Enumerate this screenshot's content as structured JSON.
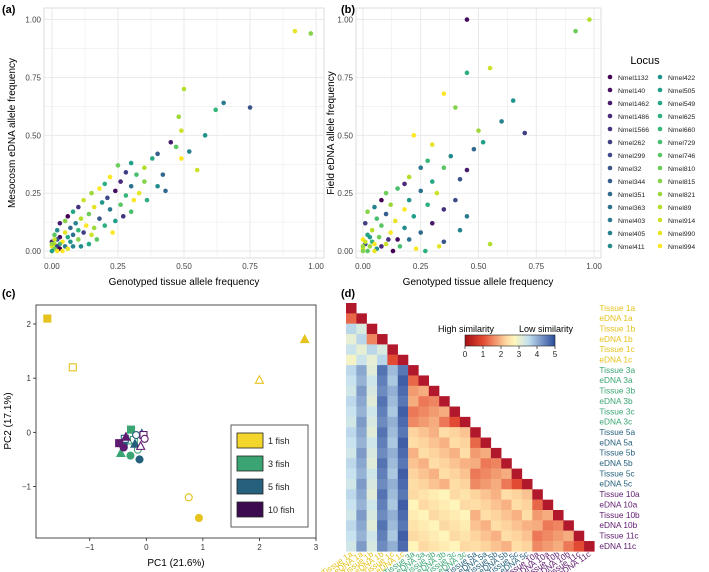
{
  "panels": {
    "a": {
      "label": "(a)"
    },
    "b": {
      "label": "(b)"
    },
    "c": {
      "label": "(c)"
    },
    "d": {
      "label": "(d)"
    }
  },
  "chart_data": [
    {
      "id": "a",
      "type": "scatter",
      "xlabel": "Genotyped tissue allele frequency",
      "ylabel": "Mesocosm eDNA allele frequency",
      "xlim": [
        -0.03,
        1.03
      ],
      "ylim": [
        -0.03,
        1.05
      ],
      "xticks": [
        "0.00",
        "0.25",
        "0.50",
        "0.75",
        "1.00"
      ],
      "yticks": [
        "0.00",
        "0.25",
        "0.50",
        "0.75",
        "1.00"
      ],
      "grid": true,
      "points": [
        [
          0.92,
          0.95,
          26
        ],
        [
          0.98,
          0.94,
          22
        ],
        [
          0.5,
          0.7,
          24
        ],
        [
          0.65,
          0.64,
          11
        ],
        [
          0.75,
          0.62,
          7
        ],
        [
          0.62,
          0.61,
          18
        ],
        [
          0.48,
          0.58,
          23
        ],
        [
          0.49,
          0.52,
          25
        ],
        [
          0.58,
          0.5,
          14
        ],
        [
          0.45,
          0.47,
          2
        ],
        [
          0.47,
          0.45,
          20
        ],
        [
          0.52,
          0.43,
          12
        ],
        [
          0.4,
          0.42,
          8
        ],
        [
          0.49,
          0.4,
          27
        ],
        [
          0.38,
          0.4,
          16
        ],
        [
          0.3,
          0.38,
          15
        ],
        [
          0.25,
          0.37,
          21
        ],
        [
          0.35,
          0.36,
          24
        ],
        [
          0.28,
          0.34,
          5
        ],
        [
          0.32,
          0.33,
          19
        ],
        [
          0.42,
          0.33,
          9
        ],
        [
          0.22,
          0.32,
          28
        ],
        [
          0.26,
          0.3,
          3
        ],
        [
          0.35,
          0.3,
          22
        ],
        [
          0.2,
          0.29,
          17
        ],
        [
          0.3,
          0.28,
          10
        ],
        [
          0.18,
          0.27,
          27
        ],
        [
          0.4,
          0.28,
          13
        ],
        [
          0.24,
          0.26,
          1
        ],
        [
          0.15,
          0.25,
          23
        ],
        [
          0.28,
          0.24,
          18
        ],
        [
          0.21,
          0.23,
          6
        ],
        [
          0.12,
          0.22,
          25
        ],
        [
          0.19,
          0.21,
          14
        ],
        [
          0.26,
          0.2,
          20
        ],
        [
          0.1,
          0.19,
          4
        ],
        [
          0.16,
          0.19,
          26
        ],
        [
          0.22,
          0.18,
          11
        ],
        [
          0.08,
          0.17,
          16
        ],
        [
          0.14,
          0.16,
          21
        ],
        [
          0.3,
          0.17,
          19
        ],
        [
          0.06,
          0.15,
          0
        ],
        [
          0.11,
          0.14,
          24
        ],
        [
          0.18,
          0.14,
          7
        ],
        [
          0.24,
          0.13,
          15
        ],
        [
          0.05,
          0.13,
          22
        ],
        [
          0.09,
          0.12,
          12
        ],
        [
          0.03,
          0.12,
          2
        ],
        [
          0.13,
          0.11,
          27
        ],
        [
          0.2,
          0.11,
          17
        ],
        [
          0.07,
          0.1,
          9
        ],
        [
          0.16,
          0.1,
          23
        ],
        [
          0.02,
          0.09,
          13
        ],
        [
          0.1,
          0.09,
          18
        ],
        [
          0.05,
          0.08,
          26
        ],
        [
          0.12,
          0.08,
          5
        ],
        [
          0.01,
          0.07,
          20
        ],
        [
          0.08,
          0.07,
          10
        ],
        [
          0.15,
          0.07,
          25
        ],
        [
          0.03,
          0.06,
          1
        ],
        [
          0.06,
          0.06,
          16
        ],
        [
          0.1,
          0.05,
          22
        ],
        [
          0.02,
          0.05,
          8
        ],
        [
          0.04,
          0.04,
          27
        ],
        [
          0.07,
          0.04,
          14
        ],
        [
          0.0,
          0.04,
          3
        ],
        [
          0.01,
          0.03,
          24
        ],
        [
          0.03,
          0.03,
          19
        ],
        [
          0.05,
          0.02,
          11
        ],
        [
          0.0,
          0.02,
          28
        ],
        [
          0.02,
          0.02,
          6
        ],
        [
          0.01,
          0.01,
          21
        ],
        [
          0.0,
          0.0,
          15
        ],
        [
          0.03,
          0.01,
          0
        ],
        [
          0.06,
          0.01,
          26
        ],
        [
          0.0,
          0.03,
          23
        ],
        [
          0.02,
          0.0,
          27
        ],
        [
          0.04,
          0.0,
          28
        ],
        [
          0.01,
          0.05,
          25
        ],
        [
          0.08,
          0.02,
          12
        ],
        [
          0.36,
          0.22,
          17
        ],
        [
          0.43,
          0.26,
          9
        ],
        [
          0.33,
          0.25,
          26
        ],
        [
          0.27,
          0.15,
          4
        ],
        [
          0.17,
          0.05,
          20
        ],
        [
          0.55,
          0.35,
          25
        ],
        [
          0.31,
          0.22,
          27
        ],
        [
          0.14,
          0.03,
          16
        ],
        [
          0.23,
          0.08,
          28
        ],
        [
          0.11,
          0.02,
          13
        ]
      ]
    },
    {
      "id": "b",
      "type": "scatter",
      "xlabel": "Genotyped tissue allele frequency",
      "ylabel": "Field eDNA allele frequency",
      "xlim": [
        -0.03,
        1.03
      ],
      "ylim": [
        -0.03,
        1.05
      ],
      "xticks": [
        "0.00",
        "0.25",
        "0.50",
        "0.75",
        "1.00"
      ],
      "yticks": [
        "0.00",
        "0.25",
        "0.50",
        "0.75",
        "1.00"
      ],
      "grid": true,
      "points": [
        [
          0.45,
          1.0,
          1
        ],
        [
          0.98,
          1.0,
          24
        ],
        [
          0.92,
          0.95,
          21
        ],
        [
          0.55,
          0.79,
          25
        ],
        [
          0.45,
          0.77,
          17
        ],
        [
          0.65,
          0.65,
          14
        ],
        [
          0.35,
          0.68,
          27
        ],
        [
          0.4,
          0.62,
          22
        ],
        [
          0.6,
          0.56,
          12
        ],
        [
          0.7,
          0.51,
          5
        ],
        [
          0.5,
          0.52,
          23
        ],
        [
          0.52,
          0.47,
          15
        ],
        [
          0.22,
          0.5,
          28
        ],
        [
          0.3,
          0.46,
          26
        ],
        [
          0.48,
          0.44,
          9
        ],
        [
          0.38,
          0.41,
          13
        ],
        [
          0.28,
          0.39,
          18
        ],
        [
          0.45,
          0.35,
          2
        ],
        [
          0.35,
          0.36,
          20
        ],
        [
          0.25,
          0.36,
          11
        ],
        [
          0.2,
          0.32,
          24
        ],
        [
          0.42,
          0.31,
          7
        ],
        [
          0.3,
          0.3,
          16
        ],
        [
          0.18,
          0.29,
          3
        ],
        [
          0.15,
          0.27,
          19
        ],
        [
          0.25,
          0.26,
          10
        ],
        [
          0.1,
          0.25,
          21
        ],
        [
          0.32,
          0.25,
          25
        ],
        [
          0.4,
          0.22,
          6
        ],
        [
          0.2,
          0.22,
          14
        ],
        [
          0.08,
          0.22,
          0
        ],
        [
          0.12,
          0.2,
          23
        ],
        [
          0.28,
          0.2,
          17
        ],
        [
          0.05,
          0.19,
          12
        ],
        [
          0.18,
          0.18,
          27
        ],
        [
          0.35,
          0.18,
          4
        ],
        [
          0.02,
          0.17,
          22
        ],
        [
          0.1,
          0.16,
          8
        ],
        [
          0.22,
          0.15,
          15
        ],
        [
          0.45,
          0.15,
          11
        ],
        [
          0.06,
          0.14,
          19
        ],
        [
          0.14,
          0.13,
          26
        ],
        [
          0.3,
          0.12,
          2
        ],
        [
          0.01,
          0.12,
          5
        ],
        [
          0.08,
          0.11,
          20
        ],
        [
          0.18,
          0.1,
          13
        ],
        [
          0.04,
          0.09,
          24
        ],
        [
          0.12,
          0.08,
          28
        ],
        [
          0.25,
          0.08,
          9
        ],
        [
          0.02,
          0.07,
          16
        ],
        [
          0.07,
          0.06,
          21
        ],
        [
          0.15,
          0.05,
          1
        ],
        [
          0.0,
          0.05,
          27
        ],
        [
          0.04,
          0.04,
          18
        ],
        [
          0.1,
          0.03,
          25
        ],
        [
          0.01,
          0.03,
          6
        ],
        [
          0.03,
          0.02,
          23
        ],
        [
          0.06,
          0.01,
          14
        ],
        [
          0.0,
          0.01,
          28
        ],
        [
          0.02,
          0.0,
          20
        ],
        [
          0.05,
          0.0,
          26
        ],
        [
          0.0,
          0.0,
          22
        ],
        [
          0.08,
          0.02,
          3
        ],
        [
          0.2,
          0.05,
          10
        ],
        [
          0.35,
          0.04,
          7
        ],
        [
          0.55,
          0.03,
          24
        ],
        [
          0.27,
          0.0,
          17
        ],
        [
          0.42,
          0.09,
          12
        ],
        [
          0.13,
          0.0,
          0
        ],
        [
          0.01,
          0.04,
          25
        ],
        [
          0.03,
          0.06,
          15
        ],
        [
          0.16,
          0.02,
          19
        ],
        [
          0.23,
          0.01,
          28
        ],
        [
          0.05,
          0.03,
          27
        ],
        [
          0.0,
          0.02,
          23
        ],
        [
          0.11,
          0.05,
          4
        ],
        [
          0.33,
          0.02,
          26
        ]
      ]
    },
    {
      "id": "c",
      "type": "scatter",
      "xlabel": "PC1 (21.6%)",
      "ylabel": "PC2 (17.1%)",
      "xlim": [
        -1.95,
        3.0
      ],
      "ylim": [
        -1.95,
        2.35
      ],
      "xticks": [
        "−1",
        "0",
        "1",
        "2",
        "3"
      ],
      "yticks": [
        "−1",
        "0",
        "1",
        "2"
      ],
      "grid": false,
      "legend": [
        {
          "label": "1 fish",
          "color": "#f2d62c"
        },
        {
          "label": "3 fish",
          "color": "#3aa572"
        },
        {
          "label": "5 fish",
          "color": "#25607c"
        },
        {
          "label": "10 fish",
          "color": "#3d0b4f"
        }
      ],
      "points": [
        [
          -1.75,
          2.1,
          0,
          "square",
          "filled"
        ],
        [
          -1.3,
          1.2,
          0,
          "square",
          "open"
        ],
        [
          2.8,
          1.72,
          0,
          "triangle",
          "filled"
        ],
        [
          2.0,
          0.97,
          0,
          "triangle",
          "open"
        ],
        [
          0.75,
          -1.2,
          0,
          "circle",
          "open"
        ],
        [
          0.93,
          -1.58,
          0,
          "circle",
          "filled"
        ],
        [
          -0.27,
          0.05,
          1,
          "square",
          "filled"
        ],
        [
          -0.22,
          -0.14,
          1,
          "square",
          "open"
        ],
        [
          -0.45,
          -0.38,
          1,
          "triangle",
          "filled"
        ],
        [
          -0.32,
          -0.15,
          1,
          "triangle",
          "open"
        ],
        [
          -0.15,
          -0.32,
          1,
          "circle",
          "open"
        ],
        [
          -0.28,
          -0.43,
          1,
          "circle",
          "filled"
        ],
        [
          -0.4,
          -0.22,
          2,
          "square",
          "filled"
        ],
        [
          -0.38,
          -0.12,
          2,
          "square",
          "open"
        ],
        [
          -0.2,
          -0.21,
          2,
          "triangle",
          "filled"
        ],
        [
          -0.08,
          -0.02,
          2,
          "triangle",
          "open"
        ],
        [
          -0.18,
          -0.05,
          2,
          "circle",
          "open"
        ],
        [
          -0.12,
          -0.5,
          2,
          "circle",
          "filled"
        ],
        [
          -0.48,
          -0.2,
          3,
          "square",
          "filled"
        ],
        [
          -0.05,
          -0.05,
          3,
          "square",
          "open"
        ],
        [
          -0.36,
          -0.08,
          3,
          "triangle",
          "filled"
        ],
        [
          -0.1,
          -0.25,
          3,
          "triangle",
          "open"
        ],
        [
          -0.03,
          -0.12,
          3,
          "circle",
          "open"
        ],
        [
          -0.4,
          -0.28,
          3,
          "circle",
          "filled"
        ]
      ]
    },
    {
      "id": "d",
      "type": "heatmap",
      "labels": [
        "Tissue 1a",
        "eDNA 1a",
        "Tissue 1b",
        "eDNA 1b",
        "Tissue 1c",
        "eDNA 1c",
        "Tissue 3a",
        "eDNA 3a",
        "Tissue 3b",
        "eDNA 3b",
        "Tissue 3c",
        "eDNA 3c",
        "Tissue 5a",
        "eDNA 5a",
        "Tissue 5b",
        "eDNA 5b",
        "Tissue 5c",
        "eDNA 5c",
        "Tissue 10a",
        "eDNA 10a",
        "Tissue 10b",
        "eDNA 10b",
        "Tissue 11c",
        "eDNA 11c"
      ],
      "label_groups": [
        0,
        0,
        0,
        0,
        0,
        0,
        1,
        1,
        1,
        1,
        1,
        1,
        2,
        2,
        2,
        2,
        2,
        2,
        3,
        3,
        3,
        3,
        3,
        3
      ],
      "colorbar": {
        "min": 0,
        "max": 5,
        "ticks": [
          "0",
          "1",
          "2",
          "3",
          "4",
          "5"
        ],
        "left_label": "High\nsimilarity",
        "right_label": "Low\nsimilarity"
      }
    }
  ],
  "heatmap_legend": {
    "left_label": "High similarity",
    "right_label": "Low similarity"
  },
  "locus_legend": {
    "title": "Locus",
    "items": [
      "Nmel1132",
      "Nmel140",
      "Nmel1462",
      "Nmel1486",
      "Nmel1566",
      "Nmel262",
      "Nmel299",
      "Nmel32",
      "Nmel344",
      "Nmel351",
      "Nmel363",
      "Nmel403",
      "Nmel405",
      "Nmel411",
      "Nmel422",
      "Nmel505",
      "Nmel549",
      "Nmel625",
      "Nmel660",
      "Nmel729",
      "Nmel746",
      "Nmel810",
      "Nmel815",
      "Nmel821",
      "Nmel89",
      "Nmel914",
      "Nmel990",
      "Nmel994"
    ]
  },
  "colors": {
    "group": [
      "#e6c21c",
      "#3aa572",
      "#25607c",
      "#5e1a6e"
    ],
    "panel_bg": "#ffffff",
    "grid": "#e7e7e7"
  }
}
